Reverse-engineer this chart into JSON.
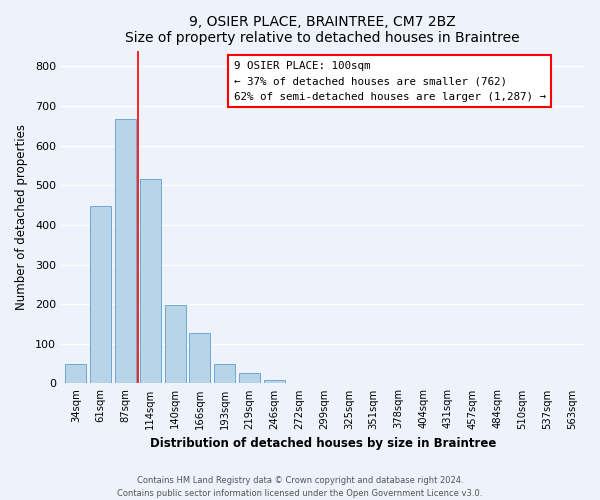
{
  "title": "9, OSIER PLACE, BRAINTREE, CM7 2BZ",
  "subtitle": "Size of property relative to detached houses in Braintree",
  "xlabel": "Distribution of detached houses by size in Braintree",
  "ylabel": "Number of detached properties",
  "bar_values": [
    50,
    448,
    668,
    515,
    197,
    128,
    50,
    27,
    8,
    0,
    0,
    0,
    0,
    0,
    0,
    0,
    0,
    0,
    0,
    0,
    0
  ],
  "bar_labels": [
    "34sqm",
    "61sqm",
    "87sqm",
    "114sqm",
    "140sqm",
    "166sqm",
    "193sqm",
    "219sqm",
    "246sqm",
    "272sqm",
    "299sqm",
    "325sqm",
    "351sqm",
    "378sqm",
    "404sqm",
    "431sqm",
    "457sqm",
    "484sqm",
    "510sqm",
    "537sqm",
    "563sqm"
  ],
  "bar_color": "#b8d4e8",
  "bar_edge_color": "#6aaad4",
  "ylim": [
    0,
    840
  ],
  "yticks": [
    0,
    100,
    200,
    300,
    400,
    500,
    600,
    700,
    800
  ],
  "annotation_line1": "9 OSIER PLACE: 100sqm",
  "annotation_line2": "← 37% of detached houses are smaller (762)",
  "annotation_line3": "62% of semi-detached houses are larger (1,287) →",
  "red_line_x": 2.5,
  "footer_line1": "Contains HM Land Registry data © Crown copyright and database right 2024.",
  "footer_line2": "Contains public sector information licensed under the Open Government Licence v3.0.",
  "background_color": "#eef2fb",
  "plot_bg_color": "#eef2fb"
}
